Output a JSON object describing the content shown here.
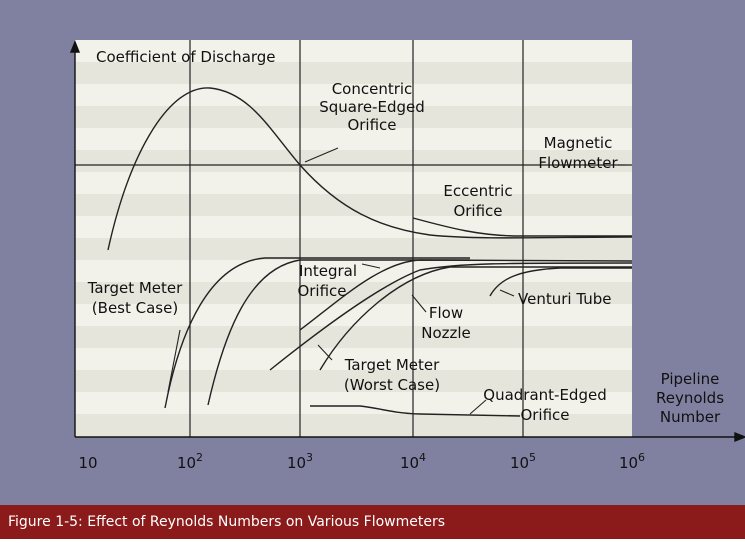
{
  "y_axis_label": "Coefficient of Discharge",
  "x_axis_label": [
    "Pipeline",
    "Reynolds",
    "Number"
  ],
  "x_ticks": [
    {
      "base": "10",
      "exp": ""
    },
    {
      "base": "10",
      "exp": "2"
    },
    {
      "base": "10",
      "exp": "3"
    },
    {
      "base": "10",
      "exp": "4"
    },
    {
      "base": "10",
      "exp": "5"
    },
    {
      "base": "10",
      "exp": "6"
    }
  ],
  "annotations": {
    "concentric": [
      "Concentric",
      "Square-Edged",
      "Orifice"
    ],
    "magnetic": [
      "Magnetic",
      "Flowmeter"
    ],
    "eccentric": [
      "Eccentric",
      "Orifice"
    ],
    "target_best": [
      "Target Meter",
      "(Best Case)"
    ],
    "integral": [
      "Integral",
      "Orifice"
    ],
    "flow_nozzle": [
      "Flow",
      "Nozzle"
    ],
    "venturi": [
      "Venturi Tube"
    ],
    "target_worst": [
      "Target Meter",
      "(Worst Case)"
    ],
    "quadrant": [
      "Quadrant-Edged",
      "Orifice"
    ]
  },
  "caption": "Figure 1-5: Effect of Reynolds Numbers on Various Flowmeters"
}
